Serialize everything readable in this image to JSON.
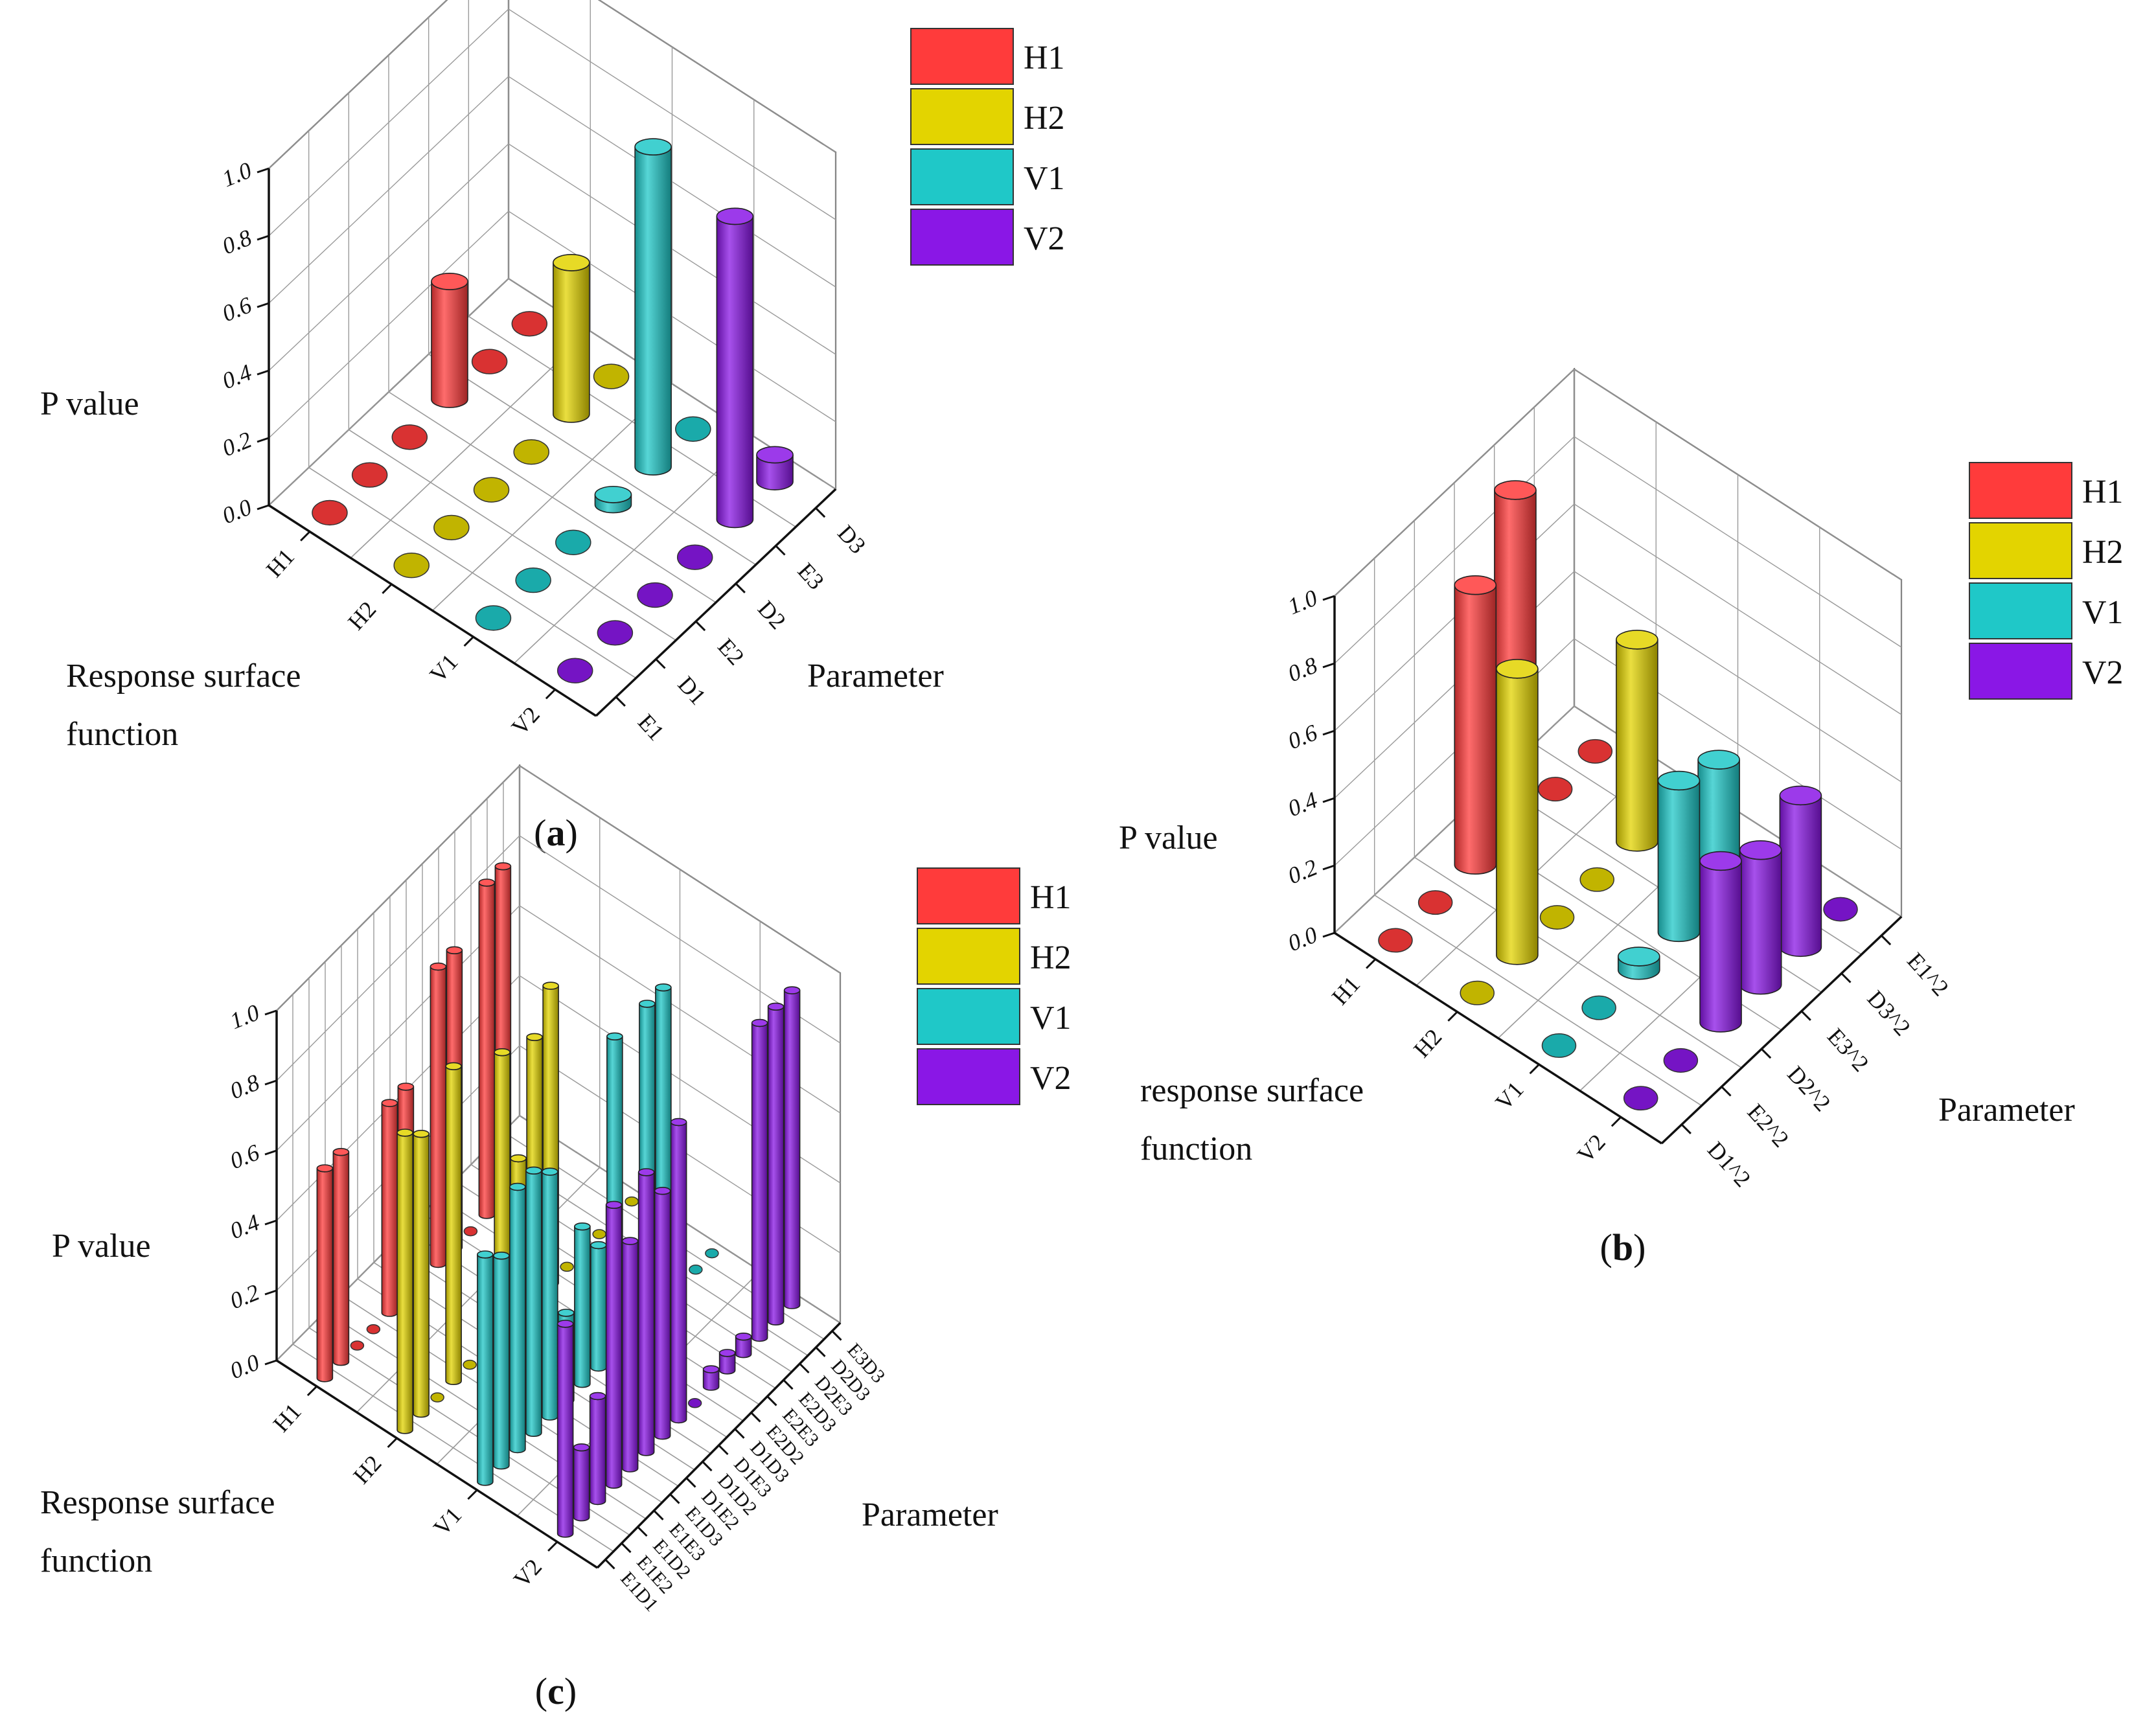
{
  "figure": {
    "colors": {
      "H1": "#ff3b3b",
      "H2": "#e3d400",
      "V1": "#1fc8c8",
      "V2": "#8a17e6"
    }
  },
  "chart_data": [
    {
      "id": "a",
      "type": "bar3d",
      "caption": {
        "open": "(",
        "letter": "a",
        "close": ")"
      },
      "ylabel": "P value",
      "xlabel": [
        "Response surface",
        "function"
      ],
      "zlabel": "Parameter",
      "functions": [
        "H1",
        "H2",
        "V1",
        "V2"
      ],
      "parameters": [
        "E1",
        "D1",
        "E2",
        "D2",
        "E3",
        "D3"
      ],
      "yticks": [
        "0.0",
        "0.2",
        "0.4",
        "0.6",
        "0.8",
        "1.0"
      ],
      "ylim": [
        0,
        1
      ],
      "legend": [
        "H1",
        "H2",
        "V1",
        "V2"
      ],
      "values": [
        [
          0,
          0,
          0,
          0.35,
          0,
          0
        ],
        [
          0,
          0,
          0,
          0,
          0.45,
          0
        ],
        [
          0,
          0,
          0,
          0.03,
          0.95,
          0
        ],
        [
          0,
          0,
          0,
          0,
          0.9,
          0.08
        ]
      ]
    },
    {
      "id": "b",
      "type": "bar3d",
      "caption": {
        "open": "(",
        "letter": "b",
        "close": ")"
      },
      "ylabel": "P value",
      "xlabel": [
        "response surface",
        "function"
      ],
      "zlabel": "Parameter",
      "functions": [
        "H1",
        "H2",
        "V1",
        "V2"
      ],
      "parameters": [
        "D1^2",
        "E2^2",
        "D2^2",
        "E3^2",
        "D3^2",
        "E1^2"
      ],
      "yticks": [
        "0.0",
        "0.2",
        "0.4",
        "0.6",
        "0.8",
        "1.0"
      ],
      "ylim": [
        0,
        1
      ],
      "legend": [
        "H1",
        "H2",
        "V1",
        "V2"
      ],
      "values": [
        [
          0,
          0,
          0.83,
          1.0,
          0,
          0
        ],
        [
          0,
          0.85,
          0,
          0,
          0.6,
          0
        ],
        [
          0,
          0,
          0.04,
          0.45,
          0.4,
          0
        ],
        [
          0,
          0,
          0.48,
          0.4,
          0.45,
          0
        ]
      ]
    },
    {
      "id": "c",
      "type": "bar3d",
      "caption": {
        "open": "(",
        "letter": "c",
        "close": ")"
      },
      "ylabel": "P value",
      "xlabel": [
        "Response surface",
        "function"
      ],
      "zlabel": "Parameter",
      "functions": [
        "H1",
        "H2",
        "V1",
        "V2"
      ],
      "parameters": [
        "E1D1",
        "E1E2",
        "E1D2",
        "E1E3",
        "E1D3",
        "D1E2",
        "D1D2",
        "D1E3",
        "D1D3",
        "E2D2",
        "E2E3",
        "E2D3",
        "D2E3",
        "D2D3",
        "E3D3"
      ],
      "yticks": [
        "0.0",
        "0.2",
        "0.4",
        "0.6",
        "0.8",
        "1.0"
      ],
      "ylim": [
        0,
        1
      ],
      "legend": [
        "H1",
        "H2",
        "V1",
        "V2"
      ],
      "values": [
        [
          0.6,
          0.6,
          0,
          0,
          0.6,
          0.6,
          0,
          0.85,
          0.85,
          0,
          0.95,
          0.95,
          0,
          0,
          0
        ],
        [
          0.85,
          0.8,
          0,
          0.9,
          0,
          0,
          0.8,
          0.45,
          0.75,
          0.85,
          0,
          0,
          0,
          0,
          0
        ],
        [
          0.65,
          0.6,
          0.75,
          0.75,
          0.7,
          0.25,
          0.45,
          0.35,
          0.9,
          0,
          0.9,
          0.9,
          0,
          0,
          0
        ],
        [
          0.6,
          0.2,
          0.3,
          0.8,
          0.65,
          0.8,
          0.7,
          0.85,
          0,
          0.05,
          0.05,
          0.05,
          0.9,
          0.9,
          0.9
        ]
      ]
    }
  ]
}
